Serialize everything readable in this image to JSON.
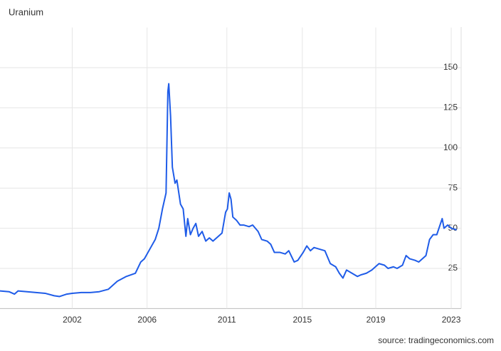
{
  "chart_data": {
    "type": "line",
    "title": "Uranium",
    "source": "source: tradingeconomics.com",
    "xlim": [
      1998,
      2023.55
    ],
    "xticks": [
      {
        "value": 2002,
        "label": "2002"
      },
      {
        "value": 2006.15,
        "label": "2006"
      },
      {
        "value": 2010.57,
        "label": "2011"
      },
      {
        "value": 2014.75,
        "label": "2015"
      },
      {
        "value": 2018.82,
        "label": "2019"
      },
      {
        "value": 2023,
        "label": "2023"
      }
    ],
    "ylim": [
      0,
      175
    ],
    "yticks": [
      25,
      50,
      75,
      100,
      125,
      150
    ],
    "grid": true,
    "x": [
      1998.0,
      1998.5,
      1998.8,
      1999.0,
      1999.5,
      2000.0,
      2000.5,
      2001.0,
      2001.3,
      2001.7,
      2002.0,
      2002.5,
      2003.0,
      2003.5,
      2004.0,
      2004.5,
      2005.0,
      2005.5,
      2005.8,
      2006.0,
      2006.3,
      2006.6,
      2006.8,
      2007.0,
      2007.2,
      2007.3,
      2007.35,
      2007.45,
      2007.55,
      2007.7,
      2007.8,
      2008.0,
      2008.15,
      2008.3,
      2008.4,
      2008.55,
      2008.7,
      2008.85,
      2009.0,
      2009.2,
      2009.4,
      2009.6,
      2009.8,
      2010.0,
      2010.3,
      2010.5,
      2010.6,
      2010.7,
      2010.8,
      2010.9,
      2011.1,
      2011.3,
      2011.5,
      2011.8,
      2012.0,
      2012.3,
      2012.5,
      2012.8,
      2013.0,
      2013.2,
      2013.5,
      2013.8,
      2014.0,
      2014.3,
      2014.5,
      2014.8,
      2015.0,
      2015.2,
      2015.4,
      2015.7,
      2016.0,
      2016.3,
      2016.6,
      2016.8,
      2017.0,
      2017.2,
      2017.5,
      2017.8,
      2018.0,
      2018.3,
      2018.6,
      2018.8,
      2019.0,
      2019.3,
      2019.5,
      2019.8,
      2020.0,
      2020.3,
      2020.5,
      2020.7,
      2021.0,
      2021.2,
      2021.4,
      2021.6,
      2021.8,
      2022.0,
      2022.2,
      2022.5,
      2022.6,
      2022.8,
      2023.0,
      2023.3
    ],
    "series": [
      {
        "color": "#1f5ce8",
        "values": [
          11,
          10.5,
          9,
          11,
          10.5,
          10,
          9.5,
          8,
          7.5,
          9,
          9.5,
          10,
          10,
          10.5,
          12,
          17,
          20,
          22,
          29,
          31,
          37,
          43,
          50,
          62,
          72,
          135,
          140,
          120,
          88,
          78,
          80,
          65,
          62,
          45,
          56,
          46,
          50,
          53,
          45,
          48,
          42,
          44,
          42,
          44,
          47,
          60,
          62,
          72,
          68,
          57,
          55,
          52,
          52,
          51,
          52,
          48,
          43,
          42,
          40,
          35,
          35,
          34,
          36,
          29,
          30,
          35,
          39,
          36,
          38,
          37,
          36,
          28,
          26,
          22,
          19,
          24,
          22,
          20,
          21,
          22,
          24,
          26,
          28,
          27,
          25,
          26,
          25,
          27,
          33,
          31,
          30,
          29,
          31,
          33,
          43,
          46,
          46,
          56,
          50,
          52,
          50,
          49
        ]
      }
    ]
  }
}
